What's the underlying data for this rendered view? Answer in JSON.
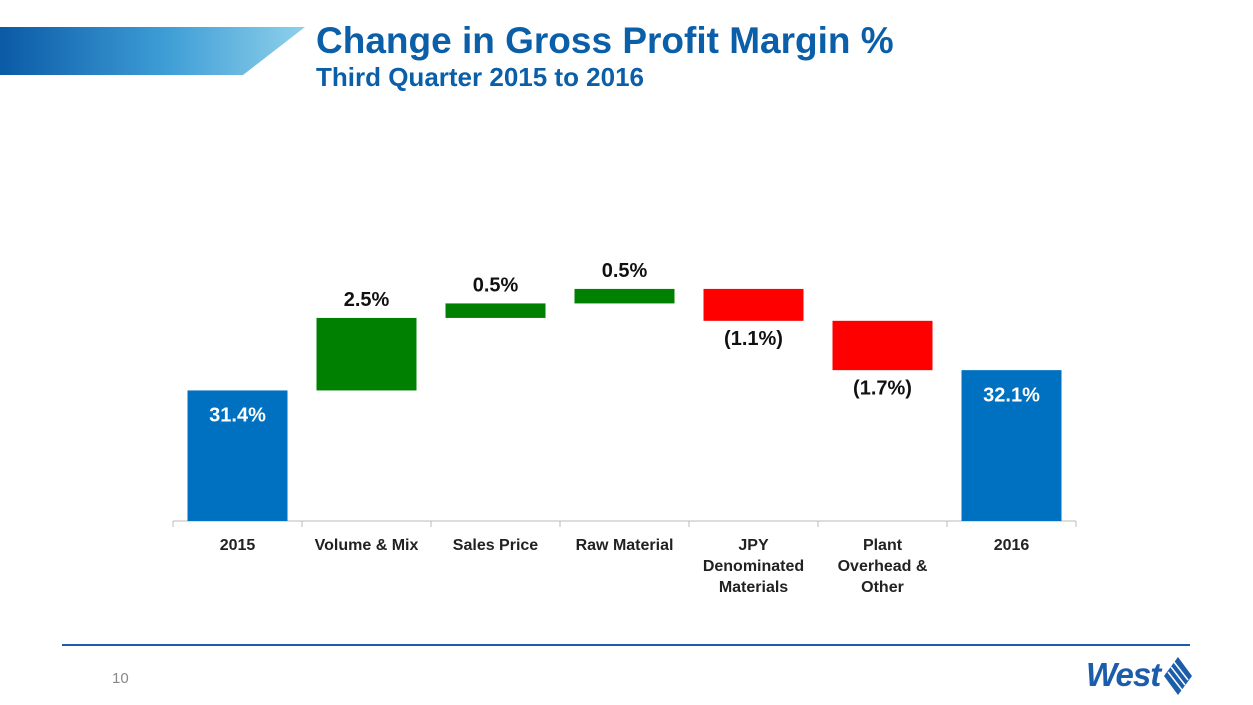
{
  "header": {
    "title": "Change in Gross Profit Margin %",
    "subtitle": "Third Quarter 2015 to 2016"
  },
  "chart_data": {
    "type": "waterfall",
    "categories": [
      "2015",
      "Volume & Mix",
      "Sales Price",
      "Raw Material",
      "JPY Denominated Materials",
      "Plant Overhead & Other",
      "2016"
    ],
    "values": [
      31.4,
      2.5,
      0.5,
      0.5,
      -1.1,
      -1.7,
      32.1
    ],
    "value_labels": [
      "31.4%",
      "2.5%",
      "0.5%",
      "0.5%",
      "(1.1%)",
      "(1.7%)",
      "32.1%"
    ],
    "colors": {
      "total": "#0070c0",
      "increase": "#008000",
      "decrease": "#ff0000"
    },
    "ylim": [
      26.9,
      36
    ]
  },
  "footer": {
    "page_number": "10",
    "logo": "West"
  }
}
